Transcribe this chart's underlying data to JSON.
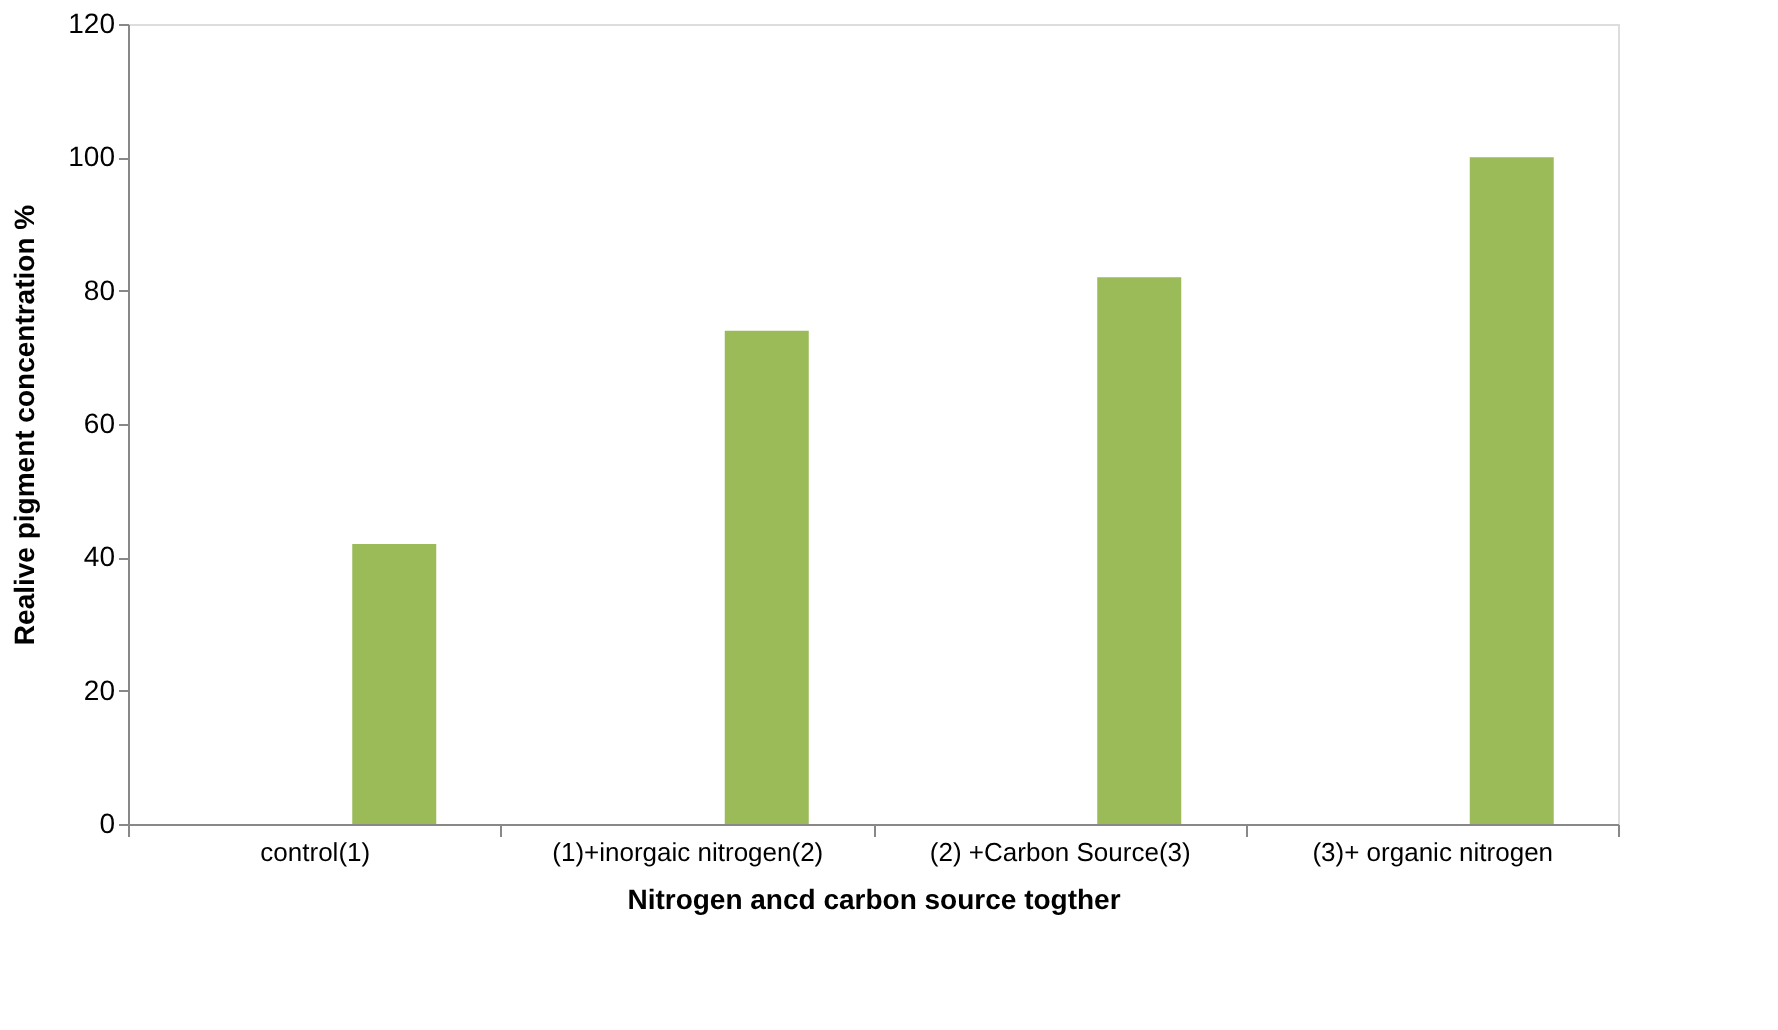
{
  "chart_data": {
    "type": "bar",
    "xlabel": "Nitrogen ancd carbon source togther",
    "ylabel": "Realive  pigment concentration %",
    "categories": [
      "control(1)",
      "(1)+inorgaic nitrogen(2)",
      "(2) +Carbon Source(3)",
      "(3)+ organic nitrogen"
    ],
    "values": [
      42,
      74,
      82,
      100
    ],
    "color": "#9bbb59",
    "ylim": [
      0,
      120
    ],
    "yticks": [
      0,
      20,
      40,
      60,
      80,
      100,
      120
    ],
    "grid": false
  }
}
